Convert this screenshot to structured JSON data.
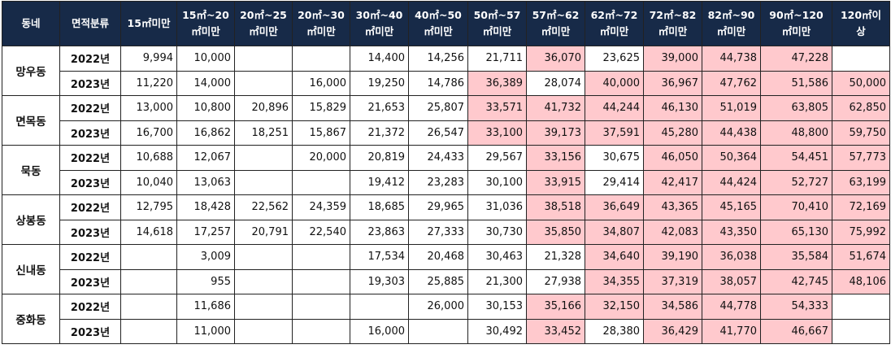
{
  "header": {
    "columns": [
      [
        "동네"
      ],
      [
        "면적분류"
      ],
      [
        "15㎡미만"
      ],
      [
        "15㎡~20",
        "㎡미만"
      ],
      [
        "20㎡~25",
        "㎡미만"
      ],
      [
        "20㎡~30",
        "㎡미만"
      ],
      [
        "30㎡~40",
        "㎡미만"
      ],
      [
        "40㎡~50",
        "㎡미만"
      ],
      [
        "50㎡~57",
        "㎡미만"
      ],
      [
        "57㎡~62",
        "㎡미만"
      ],
      [
        "62㎡~72",
        "㎡미만"
      ],
      [
        "72㎡~82",
        "㎡미만"
      ],
      [
        "82㎡~90",
        "㎡미만"
      ],
      [
        "90㎡~120",
        "㎡미만"
      ],
      [
        "120㎡이",
        "상"
      ]
    ]
  },
  "highlight_color": "#ffc9cd",
  "dongs": [
    {
      "name": "망우동",
      "rows": [
        {
          "year": "2022년",
          "cells": [
            {
              "v": "9,994",
              "hl": false
            },
            {
              "v": "10,000",
              "hl": false
            },
            {
              "v": "",
              "hl": false
            },
            {
              "v": "",
              "hl": false
            },
            {
              "v": "14,400",
              "hl": false
            },
            {
              "v": "14,256",
              "hl": false
            },
            {
              "v": "21,711",
              "hl": false
            },
            {
              "v": "36,070",
              "hl": true
            },
            {
              "v": "23,625",
              "hl": false
            },
            {
              "v": "39,000",
              "hl": true
            },
            {
              "v": "44,738",
              "hl": true
            },
            {
              "v": "47,228",
              "hl": true
            },
            {
              "v": "",
              "hl": false
            }
          ]
        },
        {
          "year": "2023년",
          "cells": [
            {
              "v": "11,220",
              "hl": false
            },
            {
              "v": "14,000",
              "hl": false
            },
            {
              "v": "",
              "hl": false
            },
            {
              "v": "16,000",
              "hl": false
            },
            {
              "v": "19,250",
              "hl": false
            },
            {
              "v": "14,786",
              "hl": false
            },
            {
              "v": "36,389",
              "hl": true
            },
            {
              "v": "28,074",
              "hl": false
            },
            {
              "v": "40,000",
              "hl": true
            },
            {
              "v": "36,967",
              "hl": true
            },
            {
              "v": "47,762",
              "hl": true
            },
            {
              "v": "51,586",
              "hl": true
            },
            {
              "v": "50,000",
              "hl": true
            }
          ]
        }
      ]
    },
    {
      "name": "면목동",
      "rows": [
        {
          "year": "2022년",
          "cells": [
            {
              "v": "13,000",
              "hl": false
            },
            {
              "v": "10,800",
              "hl": false
            },
            {
              "v": "20,896",
              "hl": false
            },
            {
              "v": "15,829",
              "hl": false
            },
            {
              "v": "21,653",
              "hl": false
            },
            {
              "v": "25,807",
              "hl": false
            },
            {
              "v": "33,571",
              "hl": true
            },
            {
              "v": "41,732",
              "hl": true
            },
            {
              "v": "44,244",
              "hl": true
            },
            {
              "v": "46,130",
              "hl": true
            },
            {
              "v": "51,019",
              "hl": true
            },
            {
              "v": "63,805",
              "hl": true
            },
            {
              "v": "62,850",
              "hl": true
            }
          ]
        },
        {
          "year": "2023년",
          "cells": [
            {
              "v": "16,700",
              "hl": false
            },
            {
              "v": "16,862",
              "hl": false
            },
            {
              "v": "18,251",
              "hl": false
            },
            {
              "v": "15,867",
              "hl": false
            },
            {
              "v": "21,372",
              "hl": false
            },
            {
              "v": "26,547",
              "hl": false
            },
            {
              "v": "33,100",
              "hl": true
            },
            {
              "v": "39,173",
              "hl": true
            },
            {
              "v": "37,591",
              "hl": true
            },
            {
              "v": "45,280",
              "hl": true
            },
            {
              "v": "44,438",
              "hl": true
            },
            {
              "v": "48,800",
              "hl": true
            },
            {
              "v": "59,750",
              "hl": true
            }
          ]
        }
      ]
    },
    {
      "name": "묵동",
      "rows": [
        {
          "year": "2022년",
          "cells": [
            {
              "v": "10,688",
              "hl": false
            },
            {
              "v": "12,067",
              "hl": false
            },
            {
              "v": "",
              "hl": false
            },
            {
              "v": "20,000",
              "hl": false
            },
            {
              "v": "20,819",
              "hl": false
            },
            {
              "v": "24,433",
              "hl": false
            },
            {
              "v": "29,567",
              "hl": false
            },
            {
              "v": "33,156",
              "hl": true
            },
            {
              "v": "30,675",
              "hl": false
            },
            {
              "v": "46,050",
              "hl": true
            },
            {
              "v": "50,364",
              "hl": true
            },
            {
              "v": "54,451",
              "hl": true
            },
            {
              "v": "57,773",
              "hl": true
            }
          ]
        },
        {
          "year": "2023년",
          "cells": [
            {
              "v": "10,040",
              "hl": false
            },
            {
              "v": "13,063",
              "hl": false
            },
            {
              "v": "",
              "hl": false
            },
            {
              "v": "",
              "hl": false
            },
            {
              "v": "19,412",
              "hl": false
            },
            {
              "v": "23,283",
              "hl": false
            },
            {
              "v": "30,100",
              "hl": false
            },
            {
              "v": "33,915",
              "hl": true
            },
            {
              "v": "29,414",
              "hl": false
            },
            {
              "v": "42,417",
              "hl": true
            },
            {
              "v": "44,424",
              "hl": true
            },
            {
              "v": "52,727",
              "hl": true
            },
            {
              "v": "63,199",
              "hl": true
            }
          ]
        }
      ]
    },
    {
      "name": "상봉동",
      "rows": [
        {
          "year": "2022년",
          "cells": [
            {
              "v": "12,795",
              "hl": false
            },
            {
              "v": "18,428",
              "hl": false
            },
            {
              "v": "22,562",
              "hl": false
            },
            {
              "v": "24,359",
              "hl": false
            },
            {
              "v": "18,685",
              "hl": false
            },
            {
              "v": "29,965",
              "hl": false
            },
            {
              "v": "31,036",
              "hl": false
            },
            {
              "v": "38,518",
              "hl": true
            },
            {
              "v": "36,649",
              "hl": true
            },
            {
              "v": "43,365",
              "hl": true
            },
            {
              "v": "45,165",
              "hl": true
            },
            {
              "v": "70,410",
              "hl": true
            },
            {
              "v": "72,169",
              "hl": true
            }
          ]
        },
        {
          "year": "2023년",
          "cells": [
            {
              "v": "14,618",
              "hl": false
            },
            {
              "v": "17,257",
              "hl": false
            },
            {
              "v": "20,791",
              "hl": false
            },
            {
              "v": "22,540",
              "hl": false
            },
            {
              "v": "23,863",
              "hl": false
            },
            {
              "v": "27,333",
              "hl": false
            },
            {
              "v": "30,730",
              "hl": false
            },
            {
              "v": "35,850",
              "hl": true
            },
            {
              "v": "34,807",
              "hl": true
            },
            {
              "v": "42,083",
              "hl": true
            },
            {
              "v": "43,350",
              "hl": true
            },
            {
              "v": "65,130",
              "hl": true
            },
            {
              "v": "75,992",
              "hl": true
            }
          ]
        }
      ]
    },
    {
      "name": "신내동",
      "rows": [
        {
          "year": "2022년",
          "cells": [
            {
              "v": "",
              "hl": false
            },
            {
              "v": "3,009",
              "hl": false
            },
            {
              "v": "",
              "hl": false
            },
            {
              "v": "",
              "hl": false
            },
            {
              "v": "17,534",
              "hl": false
            },
            {
              "v": "20,468",
              "hl": false
            },
            {
              "v": "30,463",
              "hl": false
            },
            {
              "v": "21,328",
              "hl": false
            },
            {
              "v": "34,640",
              "hl": true
            },
            {
              "v": "39,190",
              "hl": true
            },
            {
              "v": "36,038",
              "hl": true
            },
            {
              "v": "35,584",
              "hl": true
            },
            {
              "v": "51,674",
              "hl": true
            }
          ]
        },
        {
          "year": "2023년",
          "cells": [
            {
              "v": "",
              "hl": false
            },
            {
              "v": "955",
              "hl": false
            },
            {
              "v": "",
              "hl": false
            },
            {
              "v": "",
              "hl": false
            },
            {
              "v": "19,303",
              "hl": false
            },
            {
              "v": "25,885",
              "hl": false
            },
            {
              "v": "21,300",
              "hl": false
            },
            {
              "v": "27,938",
              "hl": false
            },
            {
              "v": "34,355",
              "hl": true
            },
            {
              "v": "37,319",
              "hl": true
            },
            {
              "v": "38,057",
              "hl": true
            },
            {
              "v": "42,745",
              "hl": true
            },
            {
              "v": "48,106",
              "hl": true
            }
          ]
        }
      ]
    },
    {
      "name": "중화동",
      "rows": [
        {
          "year": "2022년",
          "cells": [
            {
              "v": "",
              "hl": false
            },
            {
              "v": "11,686",
              "hl": false
            },
            {
              "v": "",
              "hl": false
            },
            {
              "v": "",
              "hl": false
            },
            {
              "v": "",
              "hl": false
            },
            {
              "v": "26,000",
              "hl": false
            },
            {
              "v": "30,153",
              "hl": false
            },
            {
              "v": "35,166",
              "hl": true
            },
            {
              "v": "32,150",
              "hl": true
            },
            {
              "v": "34,586",
              "hl": true
            },
            {
              "v": "44,778",
              "hl": true
            },
            {
              "v": "54,333",
              "hl": true
            },
            {
              "v": "",
              "hl": false
            }
          ]
        },
        {
          "year": "2023년",
          "cells": [
            {
              "v": "",
              "hl": false
            },
            {
              "v": "11,000",
              "hl": false
            },
            {
              "v": "",
              "hl": false
            },
            {
              "v": "",
              "hl": false
            },
            {
              "v": "16,000",
              "hl": false
            },
            {
              "v": "",
              "hl": false
            },
            {
              "v": "30,492",
              "hl": false
            },
            {
              "v": "33,452",
              "hl": true
            },
            {
              "v": "28,380",
              "hl": false
            },
            {
              "v": "36,429",
              "hl": true
            },
            {
              "v": "41,770",
              "hl": true
            },
            {
              "v": "46,667",
              "hl": true
            },
            {
              "v": "",
              "hl": false
            }
          ]
        }
      ]
    }
  ]
}
